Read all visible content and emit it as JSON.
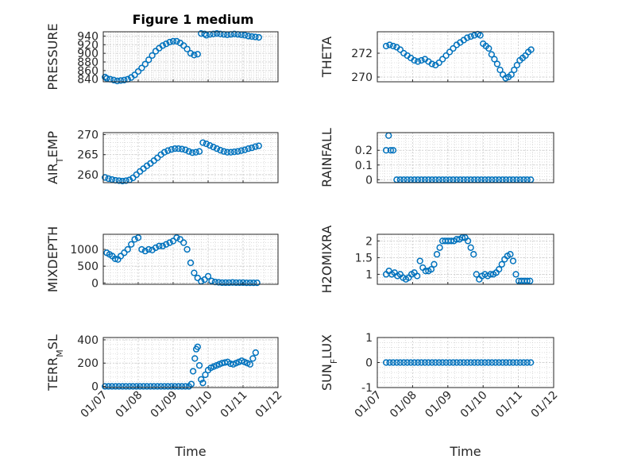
{
  "figure": {
    "title": "Figure 1 medium"
  },
  "colors": {
    "marker": "#0072BD",
    "axis": "#262626",
    "grid": "#c8c8c8",
    "background": "#ffffff"
  },
  "x_axis": {
    "label": "Time",
    "tick_labels": [
      "01/07",
      "01/08",
      "01/09",
      "01/10",
      "01/11",
      "01/12"
    ]
  },
  "chart_data": [
    {
      "type": "scatter",
      "title": "Figure 1 medium",
      "xlabel": "",
      "ylabel": "PRESSURE",
      "yticks": [
        840,
        860,
        880,
        900,
        920,
        940
      ],
      "ytick_labels": [
        "840",
        "860",
        "880",
        "900",
        "920",
        "940"
      ],
      "ylim": [
        834,
        950
      ],
      "xlim": [
        0,
        5
      ],
      "grid": true,
      "minor_grid": true,
      "x": [
        0.05,
        0.1,
        0.2,
        0.3,
        0.4,
        0.5,
        0.6,
        0.7,
        0.8,
        0.9,
        1.0,
        1.1,
        1.2,
        1.3,
        1.4,
        1.5,
        1.6,
        1.7,
        1.8,
        1.9,
        2.0,
        2.1,
        2.2,
        2.3,
        2.4,
        2.5,
        2.6,
        2.7,
        2.8,
        2.9,
        2.95,
        3.05,
        3.15,
        3.25,
        3.35,
        3.45,
        3.55,
        3.65,
        3.75,
        3.85,
        3.95,
        4.05,
        4.15,
        4.25,
        4.35,
        4.45
      ],
      "y": [
        845,
        842,
        840,
        838,
        836,
        837,
        838,
        840,
        844,
        850,
        858,
        866,
        875,
        885,
        895,
        905,
        912,
        918,
        922,
        926,
        928,
        928,
        924,
        918,
        910,
        900,
        896,
        898,
        946,
        945,
        942,
        944,
        945,
        946,
        945,
        944,
        943,
        944,
        945,
        944,
        943,
        942,
        940,
        939,
        938,
        937
      ]
    },
    {
      "type": "scatter",
      "xlabel": "",
      "ylabel": "THETA",
      "yticks": [
        270,
        272
      ],
      "ytick_labels": [
        "270",
        "272"
      ],
      "ylim": [
        269.6,
        273.8
      ],
      "xlim": [
        0,
        5
      ],
      "grid": true,
      "minor_grid": true,
      "x": [
        0.25,
        0.35,
        0.45,
        0.55,
        0.65,
        0.75,
        0.85,
        0.95,
        1.05,
        1.15,
        1.25,
        1.35,
        1.45,
        1.55,
        1.65,
        1.75,
        1.85,
        1.95,
        2.05,
        2.15,
        2.25,
        2.35,
        2.45,
        2.55,
        2.65,
        2.75,
        2.85,
        2.92,
        3.0,
        3.08,
        3.16,
        3.24,
        3.32,
        3.4,
        3.48,
        3.56,
        3.64,
        3.72,
        3.8,
        3.88,
        3.96,
        4.04,
        4.12,
        4.2,
        4.28,
        4.36
      ],
      "y": [
        272.6,
        272.7,
        272.6,
        272.5,
        272.3,
        272.0,
        271.8,
        271.6,
        271.4,
        271.3,
        271.4,
        271.5,
        271.3,
        271.1,
        271.0,
        271.2,
        271.5,
        271.8,
        272.1,
        272.4,
        272.7,
        272.9,
        273.1,
        273.3,
        273.4,
        273.5,
        273.6,
        273.5,
        272.8,
        272.6,
        272.4,
        271.9,
        271.5,
        271.1,
        270.6,
        270.2,
        269.9,
        270.0,
        270.2,
        270.6,
        271.0,
        271.4,
        271.6,
        271.8,
        272.1,
        272.3
      ]
    },
    {
      "type": "scatter",
      "xlabel": "",
      "ylabel": "AIR_TEMP",
      "yticks": [
        260,
        265,
        270
      ],
      "ytick_labels": [
        "260",
        "265",
        "270"
      ],
      "ylim": [
        258,
        270.5
      ],
      "xlim": [
        0,
        5
      ],
      "grid": true,
      "minor_grid": true,
      "x": [
        0.05,
        0.15,
        0.25,
        0.35,
        0.45,
        0.55,
        0.65,
        0.75,
        0.85,
        0.95,
        1.05,
        1.15,
        1.25,
        1.35,
        1.45,
        1.55,
        1.65,
        1.75,
        1.85,
        1.95,
        2.05,
        2.15,
        2.25,
        2.35,
        2.45,
        2.55,
        2.65,
        2.75,
        2.85,
        2.95,
        3.05,
        3.15,
        3.25,
        3.35,
        3.45,
        3.55,
        3.65,
        3.75,
        3.85,
        3.95,
        4.05,
        4.15,
        4.25,
        4.35,
        4.45
      ],
      "y": [
        259.3,
        259.0,
        258.8,
        258.6,
        258.5,
        258.4,
        258.5,
        258.7,
        259.2,
        260.0,
        260.8,
        261.5,
        262.2,
        262.8,
        263.5,
        264.2,
        265.0,
        265.6,
        266.0,
        266.3,
        266.5,
        266.5,
        266.4,
        266.2,
        265.8,
        265.5,
        265.6,
        265.8,
        268.0,
        267.7,
        267.3,
        266.9,
        266.5,
        266.1,
        265.8,
        265.6,
        265.6,
        265.7,
        265.8,
        266.0,
        266.2,
        266.5,
        266.7,
        267.0,
        267.2
      ]
    },
    {
      "type": "scatter",
      "xlabel": "",
      "ylabel": "RAINFALL",
      "yticks": [
        0,
        0.1,
        0.2
      ],
      "ytick_labels": [
        "0",
        "0.1",
        "0.2"
      ],
      "ylim": [
        -0.02,
        0.32
      ],
      "xlim": [
        0,
        5
      ],
      "grid": true,
      "minor_grid": true,
      "x": [
        0.25,
        0.32,
        0.38,
        0.45,
        0.55,
        0.65,
        0.75,
        0.85,
        0.95,
        1.05,
        1.15,
        1.25,
        1.35,
        1.45,
        1.55,
        1.65,
        1.75,
        1.85,
        1.95,
        2.05,
        2.15,
        2.25,
        2.35,
        2.45,
        2.55,
        2.65,
        2.75,
        2.85,
        2.95,
        3.05,
        3.15,
        3.25,
        3.35,
        3.45,
        3.55,
        3.65,
        3.75,
        3.85,
        3.95,
        4.05,
        4.15,
        4.25,
        4.35
      ],
      "y": [
        0.2,
        0.3,
        0.2,
        0.2,
        0,
        0,
        0,
        0,
        0,
        0,
        0,
        0,
        0,
        0,
        0,
        0,
        0,
        0,
        0,
        0,
        0,
        0,
        0,
        0,
        0,
        0,
        0,
        0,
        0,
        0,
        0,
        0,
        0,
        0,
        0,
        0,
        0,
        0,
        0,
        0,
        0,
        0,
        0
      ]
    },
    {
      "type": "scatter",
      "xlabel": "",
      "ylabel": "MIXDEPTH",
      "yticks": [
        0,
        500,
        1000
      ],
      "ytick_labels": [
        "0",
        "500",
        "1000"
      ],
      "ylim": [
        -40,
        1450
      ],
      "xlim": [
        0,
        5
      ],
      "grid": true,
      "minor_grid": true,
      "x": [
        0.1,
        0.18,
        0.26,
        0.34,
        0.42,
        0.5,
        0.6,
        0.7,
        0.8,
        0.9,
        1.0,
        1.1,
        1.2,
        1.3,
        1.4,
        1.5,
        1.6,
        1.7,
        1.8,
        1.9,
        2.0,
        2.1,
        2.2,
        2.3,
        2.4,
        2.5,
        2.6,
        2.7,
        2.8,
        2.9,
        3.0,
        3.1,
        3.2,
        3.3,
        3.4,
        3.5,
        3.6,
        3.7,
        3.8,
        3.9,
        4.0,
        4.1,
        4.2,
        4.3,
        4.4
      ],
      "y": [
        900,
        850,
        800,
        720,
        700,
        800,
        900,
        1000,
        1150,
        1300,
        1350,
        1000,
        950,
        1000,
        980,
        1050,
        1100,
        1100,
        1150,
        1200,
        1250,
        1350,
        1300,
        1200,
        1000,
        600,
        300,
        150,
        50,
        100,
        200,
        60,
        30,
        20,
        10,
        10,
        10,
        15,
        10,
        10,
        10,
        5,
        5,
        5,
        5
      ]
    },
    {
      "type": "scatter",
      "xlabel": "",
      "ylabel": "H2OMIXRA",
      "yticks": [
        1,
        1.5,
        2
      ],
      "ytick_labels": [
        "1",
        "1.5",
        "2"
      ],
      "ylim": [
        0.7,
        2.2
      ],
      "xlim": [
        0,
        5
      ],
      "grid": true,
      "minor_grid": true,
      "x": [
        0.25,
        0.33,
        0.41,
        0.49,
        0.57,
        0.65,
        0.73,
        0.81,
        0.89,
        0.97,
        1.05,
        1.13,
        1.21,
        1.29,
        1.37,
        1.45,
        1.53,
        1.61,
        1.69,
        1.77,
        1.85,
        1.93,
        2.01,
        2.09,
        2.17,
        2.25,
        2.33,
        2.41,
        2.49,
        2.57,
        2.65,
        2.73,
        2.81,
        2.89,
        2.97,
        3.05,
        3.13,
        3.21,
        3.29,
        3.37,
        3.45,
        3.53,
        3.61,
        3.69,
        3.77,
        3.85,
        3.93,
        4.01,
        4.09,
        4.17,
        4.25,
        4.33
      ],
      "y": [
        1.0,
        1.1,
        1.0,
        1.05,
        0.95,
        1.0,
        0.9,
        0.85,
        0.9,
        1.0,
        1.05,
        0.95,
        1.4,
        1.2,
        1.1,
        1.1,
        1.15,
        1.3,
        1.6,
        1.8,
        2.0,
        2.0,
        2.0,
        2.0,
        2.0,
        2.05,
        2.05,
        2.1,
        2.1,
        2.0,
        1.8,
        1.6,
        1.0,
        0.85,
        0.95,
        1.0,
        0.95,
        1.0,
        1.0,
        1.05,
        1.15,
        1.3,
        1.45,
        1.55,
        1.6,
        1.4,
        1.0,
        0.8,
        0.8,
        0.8,
        0.8,
        0.8
      ]
    },
    {
      "type": "scatter",
      "xlabel": "Time",
      "ylabel": "TERR_MSL",
      "yticks": [
        0,
        200,
        400
      ],
      "ytick_labels": [
        "0",
        "200",
        "400"
      ],
      "ylim": [
        -10,
        420
      ],
      "xlim": [
        0,
        5
      ],
      "grid": true,
      "minor_grid": true,
      "x": [
        0.05,
        0.15,
        0.25,
        0.35,
        0.45,
        0.55,
        0.65,
        0.75,
        0.85,
        0.95,
        1.05,
        1.15,
        1.25,
        1.35,
        1.45,
        1.55,
        1.65,
        1.75,
        1.85,
        1.95,
        2.05,
        2.15,
        2.25,
        2.35,
        2.45,
        2.52,
        2.57,
        2.62,
        2.66,
        2.7,
        2.75,
        2.8,
        2.85,
        2.92,
        3.0,
        3.08,
        3.16,
        3.24,
        3.32,
        3.4,
        3.48,
        3.56,
        3.64,
        3.72,
        3.8,
        3.88,
        3.96,
        4.04,
        4.12,
        4.2,
        4.28,
        4.36
      ],
      "y": [
        0,
        0,
        0,
        0,
        0,
        0,
        0,
        0,
        0,
        0,
        0,
        0,
        0,
        0,
        0,
        0,
        0,
        0,
        0,
        0,
        0,
        0,
        0,
        0,
        0,
        20,
        130,
        240,
        320,
        340,
        180,
        60,
        30,
        100,
        140,
        160,
        170,
        180,
        190,
        200,
        205,
        210,
        195,
        190,
        200,
        210,
        220,
        210,
        200,
        190,
        240,
        290
      ]
    },
    {
      "type": "scatter",
      "xlabel": "Time",
      "ylabel": "SUN_FLUX",
      "yticks": [
        -1,
        0,
        1
      ],
      "ytick_labels": [
        "-1",
        "0",
        "1"
      ],
      "ylim": [
        -1,
        1
      ],
      "xlim": [
        0,
        5
      ],
      "grid": true,
      "minor_grid": true,
      "x": [
        0.25,
        0.35,
        0.45,
        0.55,
        0.65,
        0.75,
        0.85,
        0.95,
        1.05,
        1.15,
        1.25,
        1.35,
        1.45,
        1.55,
        1.65,
        1.75,
        1.85,
        1.95,
        2.05,
        2.15,
        2.25,
        2.35,
        2.45,
        2.55,
        2.65,
        2.75,
        2.85,
        2.95,
        3.05,
        3.15,
        3.25,
        3.35,
        3.45,
        3.55,
        3.65,
        3.75,
        3.85,
        3.95,
        4.05,
        4.15,
        4.25,
        4.35
      ],
      "y": [
        0,
        0,
        0,
        0,
        0,
        0,
        0,
        0,
        0,
        0,
        0,
        0,
        0,
        0,
        0,
        0,
        0,
        0,
        0,
        0,
        0,
        0,
        0,
        0,
        0,
        0,
        0,
        0,
        0,
        0,
        0,
        0,
        0,
        0,
        0,
        0,
        0,
        0,
        0,
        0,
        0,
        0
      ]
    }
  ]
}
